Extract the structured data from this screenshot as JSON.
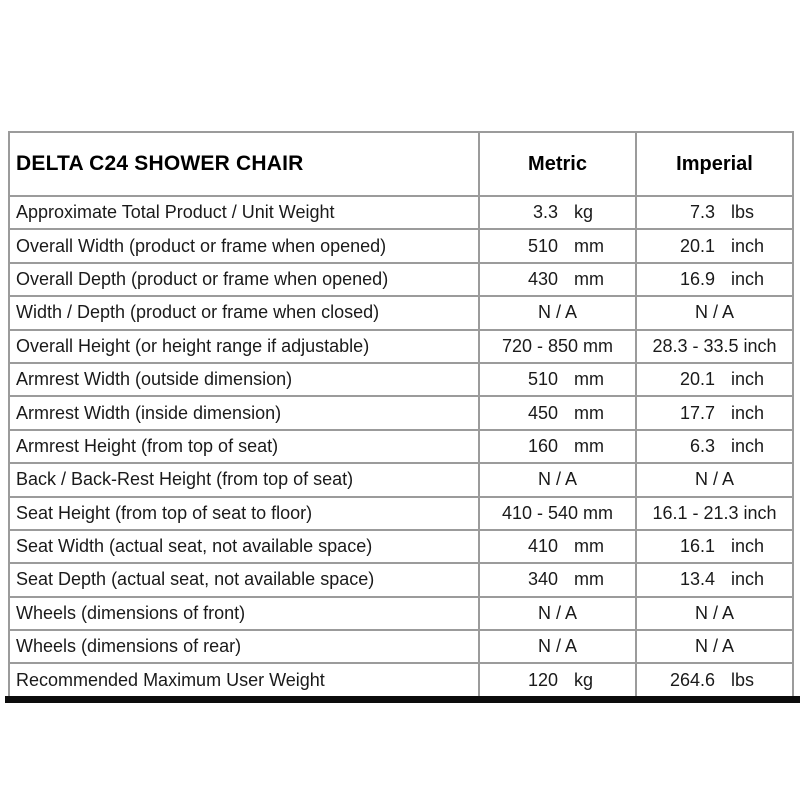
{
  "table": {
    "title": "DELTA C24 SHOWER CHAIR",
    "columns": [
      "Metric",
      "Imperial"
    ],
    "rows": [
      {
        "label": "Approximate Total Product / Unit Weight",
        "metric": {
          "value": "3.3",
          "unit": "kg"
        },
        "imperial": {
          "value": "7.3",
          "unit": "lbs"
        }
      },
      {
        "label": "Overall Width (product or frame when opened)",
        "metric": {
          "value": "510",
          "unit": "mm"
        },
        "imperial": {
          "value": "20.1",
          "unit": "inch"
        }
      },
      {
        "label": "Overall Depth (product or frame when opened)",
        "metric": {
          "value": "430",
          "unit": "mm"
        },
        "imperial": {
          "value": "16.9",
          "unit": "inch"
        }
      },
      {
        "label": "Width / Depth (product or frame when closed)",
        "metric": {
          "text": "N / A"
        },
        "imperial": {
          "text": "N / A"
        }
      },
      {
        "label": "Overall Height (or height range if adjustable)",
        "metric": {
          "text": "720 - 850 mm"
        },
        "imperial": {
          "text": "28.3 - 33.5 inch"
        }
      },
      {
        "label": "Armrest Width (outside dimension)",
        "metric": {
          "value": "510",
          "unit": "mm"
        },
        "imperial": {
          "value": "20.1",
          "unit": "inch"
        }
      },
      {
        "label": "Armrest Width (inside dimension)",
        "metric": {
          "value": "450",
          "unit": "mm"
        },
        "imperial": {
          "value": "17.7",
          "unit": "inch"
        }
      },
      {
        "label": "Armrest Height (from top of seat)",
        "metric": {
          "value": "160",
          "unit": "mm"
        },
        "imperial": {
          "value": "6.3",
          "unit": "inch"
        }
      },
      {
        "label": "Back / Back-Rest Height (from top of seat)",
        "metric": {
          "text": "N / A"
        },
        "imperial": {
          "text": "N / A"
        }
      },
      {
        "label": "Seat Height (from top of seat to floor)",
        "metric": {
          "text": "410 - 540 mm"
        },
        "imperial": {
          "text": "16.1 - 21.3 inch"
        }
      },
      {
        "label": "Seat Width (actual seat, not available space)",
        "metric": {
          "value": "410",
          "unit": "mm"
        },
        "imperial": {
          "value": "16.1",
          "unit": "inch"
        }
      },
      {
        "label": "Seat Depth (actual seat, not available space)",
        "metric": {
          "value": "340",
          "unit": "mm"
        },
        "imperial": {
          "value": "13.4",
          "unit": "inch"
        }
      },
      {
        "label": "Wheels (dimensions of front)",
        "metric": {
          "text": "N / A"
        },
        "imperial": {
          "text": "N / A"
        }
      },
      {
        "label": "Wheels (dimensions of rear)",
        "metric": {
          "text": "N / A"
        },
        "imperial": {
          "text": "N / A"
        }
      },
      {
        "label": "Recommended Maximum User Weight",
        "metric": {
          "value": "120",
          "unit": "kg"
        },
        "imperial": {
          "value": "264.6",
          "unit": "lbs"
        }
      }
    ]
  },
  "colors": {
    "background": "#ffffff",
    "border": "#9b9b9b",
    "bottom_rule": "#0c0c0c",
    "text": "#1a1a1a"
  }
}
